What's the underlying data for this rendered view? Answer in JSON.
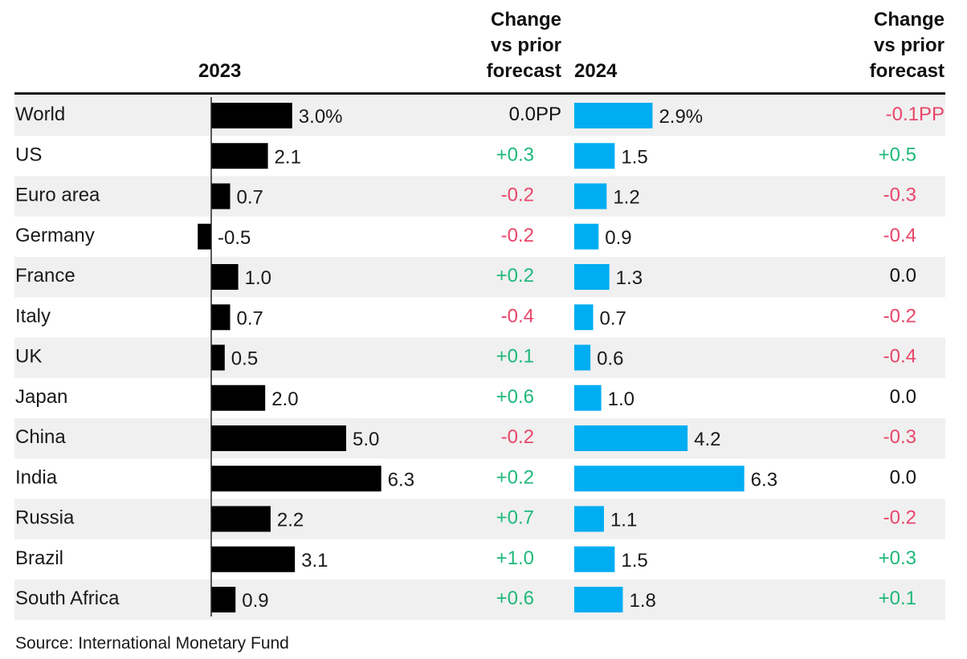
{
  "colors": {
    "bar_2023": "#000000",
    "bar_2024": "#00adf2",
    "positive": "#1fb87a",
    "negative": "#e8466a",
    "neutral": "#111111",
    "row_band": "#f0f0f0"
  },
  "headers": {
    "year_2023": "2023",
    "change_2023": [
      "Change",
      "vs prior",
      "forecast"
    ],
    "year_2024": "2024",
    "change_2024": [
      "Change",
      "vs prior",
      "forecast"
    ]
  },
  "source": "Source: International Monetary Fund",
  "chart_data": {
    "type": "bar",
    "unit": "%",
    "categories": [
      "World",
      "US",
      "Euro area",
      "Germany",
      "France",
      "Italy",
      "UK",
      "Japan",
      "China",
      "India",
      "Russia",
      "Brazil",
      "South Africa"
    ],
    "series": [
      {
        "name": "2023",
        "values": [
          3.0,
          2.1,
          0.7,
          -0.5,
          1.0,
          0.7,
          0.5,
          2.0,
          5.0,
          6.3,
          2.2,
          3.1,
          0.9
        ],
        "value_labels": [
          "3.0%",
          "2.1",
          "0.7",
          "-0.5",
          "1.0",
          "0.7",
          "0.5",
          "2.0",
          "5.0",
          "6.3",
          "2.2",
          "3.1",
          "0.9"
        ],
        "change_labels": [
          "0.0PP",
          "+0.3",
          "-0.2",
          "-0.2",
          "+0.2",
          "-0.4",
          "+0.1",
          "+0.6",
          "-0.2",
          "+0.2",
          "+0.7",
          "+1.0",
          "+0.6"
        ]
      },
      {
        "name": "2024",
        "values": [
          2.9,
          1.5,
          1.2,
          0.9,
          1.3,
          0.7,
          0.6,
          1.0,
          4.2,
          6.3,
          1.1,
          1.5,
          1.8
        ],
        "value_labels": [
          "2.9%",
          "1.5",
          "1.2",
          "0.9",
          "1.3",
          "0.7",
          "0.6",
          "1.0",
          "4.2",
          "6.3",
          "1.1",
          "1.5",
          "1.8"
        ],
        "change_labels": [
          "-0.1PP",
          "+0.5",
          "-0.3",
          "-0.4",
          "0.0",
          "-0.2",
          "-0.4",
          "0.0",
          "-0.3",
          "0.0",
          "-0.2",
          "+0.3",
          "+0.1"
        ]
      }
    ],
    "grid": false,
    "legend": "none"
  }
}
